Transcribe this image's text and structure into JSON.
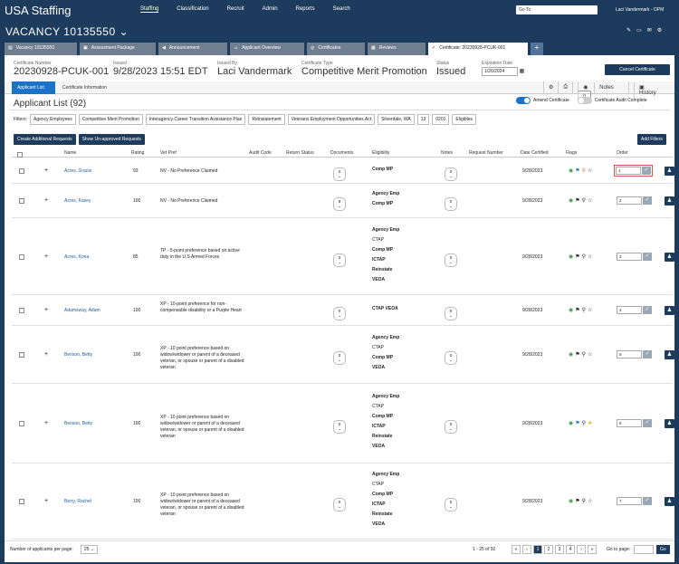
{
  "nav": {
    "brand": "USA Staffing",
    "items": [
      "Staffing",
      "Classification",
      "Recruit",
      "Admin",
      "Reports",
      "Search"
    ],
    "goto_placeholder": "Go To",
    "user": "Laci Vandermark - OPM"
  },
  "vacancy": {
    "title": "VACANCY 10135550"
  },
  "tabs": [
    "Vacancy 10135550",
    "Assessment Package",
    "Announcement",
    "Applicant Overview",
    "Certificates",
    "Reviews",
    "Certificate: 20230928-PCUK-001"
  ],
  "cert": {
    "number_label": "Certificate Number",
    "number": "20230928-PCUK-001",
    "issued_label": "Issued",
    "issued": "9/28/2023 15:51 EDT",
    "issued_by_label": "Issued By",
    "issued_by": "Laci Vandermark",
    "type_label": "Certificate Type",
    "type": "Competitive Merit Promotion",
    "status_label": "Status",
    "status": "Issued",
    "exp_label": "Expiration Date",
    "exp": "1/26/2024",
    "cancel": "Cancel Certificate"
  },
  "crumbs": [
    "Applicant List",
    "Certificate Information"
  ],
  "toolbar": {
    "notes": "Notes",
    "notes_count": "0",
    "history": "History"
  },
  "list": {
    "title": "Applicant List (92)",
    "amend": "Amend Certificate",
    "audit": "Certificate Audit Complete"
  },
  "filters": {
    "label": "Filters:",
    "chips": [
      "Agency Employees",
      "Competitive Merit Promotion",
      "Interagency Career Transition Assistance Plan",
      "Reinstatement",
      "Veterans Employment Opportunities Act",
      "Silverdale, WA",
      "13",
      "0201",
      "Eligibles"
    ]
  },
  "buttons": {
    "create": "Create Additional Requests",
    "show": "Show Un-approved Requests",
    "add_filters": "Add Filters"
  },
  "columns": [
    "Name",
    "Rating",
    "Vet Pref",
    "Audit Code",
    "Return Status",
    "Documents",
    "Eligibility",
    "Notes",
    "Request Number",
    "Date Certified",
    "Flags",
    "Order"
  ],
  "rows": [
    {
      "name": "Acres, Gracie",
      "rating": "93",
      "vet": "NV - No Preference Claimed",
      "docs": "0",
      "elig": [
        "Comp MP"
      ],
      "notes": "0",
      "date": "9/28/2023",
      "order": "1"
    },
    {
      "name": "Acres, Kasey",
      "rating": "100",
      "vet": "NV - No Preference Claimed",
      "docs": "8",
      "elig": [
        "Agency Emp",
        "Comp MP"
      ],
      "notes": "0",
      "date": "9/28/2023",
      "order": "2"
    },
    {
      "name": "Acres, Kona",
      "rating": "85",
      "vet": "TP - 5-point preference based on active duty in the U.S Armed Forces",
      "docs": "3",
      "elig": [
        "Agency Emp",
        "CTAP",
        "Comp MP",
        "ICTAP",
        "Reinstate",
        "VEOA"
      ],
      "notes": "0",
      "date": "9/28/2023",
      "order": "3"
    },
    {
      "name": "Adamsway, Adam",
      "rating": "100",
      "vet": "XP - 10-point preference for non-compensable disability or a Purple Heart",
      "docs": "0",
      "elig": [
        "CTAP   VEOA"
      ],
      "notes": "0",
      "date": "9/28/2023",
      "order": "4"
    },
    {
      "name": "Benson, Betty",
      "rating": "100",
      "vet": "XP - 10 point preference based on widow/widower or parent of a deceased veteran, or spouse or parent of a disabled veteran",
      "docs": "0",
      "elig": [
        "Agency Emp",
        "CTAP",
        "Comp MP",
        "VEOA"
      ],
      "notes": "0",
      "date": "9/28/2023",
      "order": "5"
    },
    {
      "name": "Benson, Betty",
      "rating": "100",
      "vet": "XP - 10 point preference based on widow/widower or parent of a deceased veteran, or spouse or parent of a disabled veteran",
      "docs": "0",
      "elig": [
        "Agency Emp",
        "CTAP",
        "Comp MP",
        "ICTAP",
        "Reinstate",
        "VEOA"
      ],
      "notes": "0",
      "date": "9/28/2023",
      "order": "6"
    },
    {
      "name": "Berry, Rachel",
      "rating": "100",
      "vet": "XP - 10 point preference based on widow/widower or parent of a deceased veteran, or spouse or parent of a disabled veteran",
      "docs": "0",
      "elig": [
        "Agency Emp",
        "CTAP",
        "Comp MP",
        "ICTAP",
        "Reinstate",
        "VEOA"
      ],
      "notes": "0",
      "date": "9/28/2023",
      "order": "7"
    }
  ],
  "footer": {
    "per_page_label": "Number of applicants per page:",
    "per_page": "25",
    "range": "1 - 25 of 92",
    "pages": [
      "1",
      "2",
      "3",
      "4"
    ],
    "goto": "Go to page:",
    "go": "Go"
  },
  "colors": {
    "navy": "#1d3b5c",
    "link": "#1a5fa8",
    "accent": "#1a73c8"
  }
}
